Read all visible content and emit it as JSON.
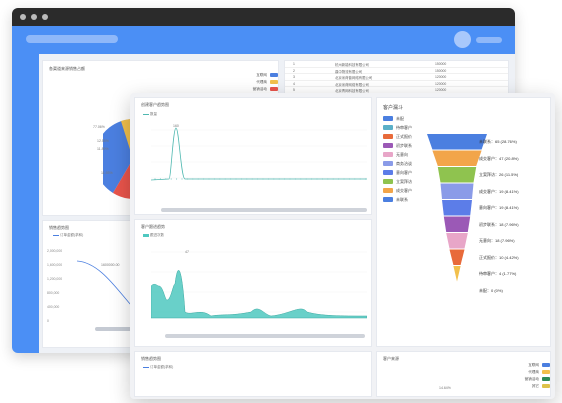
{
  "back": {
    "panel1_title": "各渠道来源销售占额",
    "panel1_legend": [
      {
        "label": "互联网",
        "color": "#4b7fe0"
      },
      {
        "label": "代理商",
        "color": "#f2c04c"
      },
      {
        "label": "营销活动",
        "color": "#e9544b"
      }
    ],
    "pie_labels": [
      "77.06%",
      "12.55%",
      "11.89%",
      "11.93%"
    ],
    "table_rows": [
      {
        "no": "1",
        "name": "杭州新能科技有限公司",
        "value": "150000"
      },
      {
        "no": "2",
        "name": "鼎中物流有限公司",
        "value": "150000"
      },
      {
        "no": "3",
        "name": "北京米荷普网络有限公司",
        "value": "120000"
      },
      {
        "no": "4",
        "name": "北京米荷网络有限公司",
        "value": "120000"
      },
      {
        "no": "5",
        "name": "北京青网科技有限公司",
        "value": "120000"
      },
      {
        "no": "6",
        "name": "广州中泰新能科技有限公司",
        "value": "120000"
      }
    ],
    "sales_title": "销售趋势图",
    "sales_legend": "订单金额(求和)",
    "sales_y_ticks": [
      "2,000,000",
      "1,600,000",
      "1,200,000",
      "800,000",
      "400,000",
      "0"
    ],
    "sales_point_label": "1600000.00"
  },
  "front": {
    "p1_title": "创建客户趋势图",
    "p1_legend": "数量",
    "p1_peak_label": "160",
    "p2_title": "客户跟进趋势",
    "p2_legend": "跟进次数",
    "p2_peak_label": "47",
    "p3_title": "销售趋势图",
    "p3_legend": "订单金额(求和)",
    "funnel_title": "客户漏斗",
    "funnel_legend": [
      {
        "label": "未配",
        "color": "#4b7fe0"
      },
      {
        "label": "待审客户",
        "color": "#5bb0c8"
      },
      {
        "label": "正式报价",
        "color": "#e86a3a"
      },
      {
        "label": "初步联系",
        "color": "#9b59b6"
      },
      {
        "label": "无意向",
        "color": "#e8a6c8"
      },
      {
        "label": "商务洽谈",
        "color": "#8a9be8"
      },
      {
        "label": "意向客户",
        "color": "#5c7de8"
      },
      {
        "label": "立案拜访",
        "color": "#8fc34f"
      },
      {
        "label": "成交客户",
        "color": "#f2a54a"
      },
      {
        "label": "未联系",
        "color": "#4b7fe0"
      }
    ],
    "funnel_rows": [
      {
        "label": "未联系：65 (28.76%)",
        "color": "#4b7fe0",
        "w": 1.0
      },
      {
        "label": "成交客户：47 (20.8%)",
        "color": "#f2a54a",
        "w": 0.82
      },
      {
        "label": "立案拜访：26 (11.5%)",
        "color": "#8fc34f",
        "w": 0.64
      },
      {
        "label": "成交客户：19 (8.41%)",
        "color": "#8a9be8",
        "w": 0.55
      },
      {
        "label": "意向客户：19 (8.41%)",
        "color": "#5c7de8",
        "w": 0.5
      },
      {
        "label": "初步联系：18 (7.96%)",
        "color": "#9b59b6",
        "w": 0.44
      },
      {
        "label": "无意向：18 (7.96%)",
        "color": "#e8a6c8",
        "w": 0.36
      },
      {
        "label": "正式报价：10 (4.42%)",
        "color": "#e86a3a",
        "w": 0.25
      },
      {
        "label": "待审客户：4 (1.77%)",
        "color": "#f2c04c",
        "w": 0.12
      },
      {
        "label": "未配：0 (0%)",
        "color": "#4b7fe0",
        "w": 0.0
      }
    ],
    "src_title": "客户来源",
    "src_legend": [
      {
        "label": "互联网",
        "color": "#4b7fe0"
      },
      {
        "label": "代理商",
        "color": "#f2c04c"
      },
      {
        "label": "营销活动",
        "color": "#2e8b57"
      },
      {
        "label": "其它",
        "color": "#ddc24a"
      }
    ],
    "src_pct": "14.64%"
  }
}
